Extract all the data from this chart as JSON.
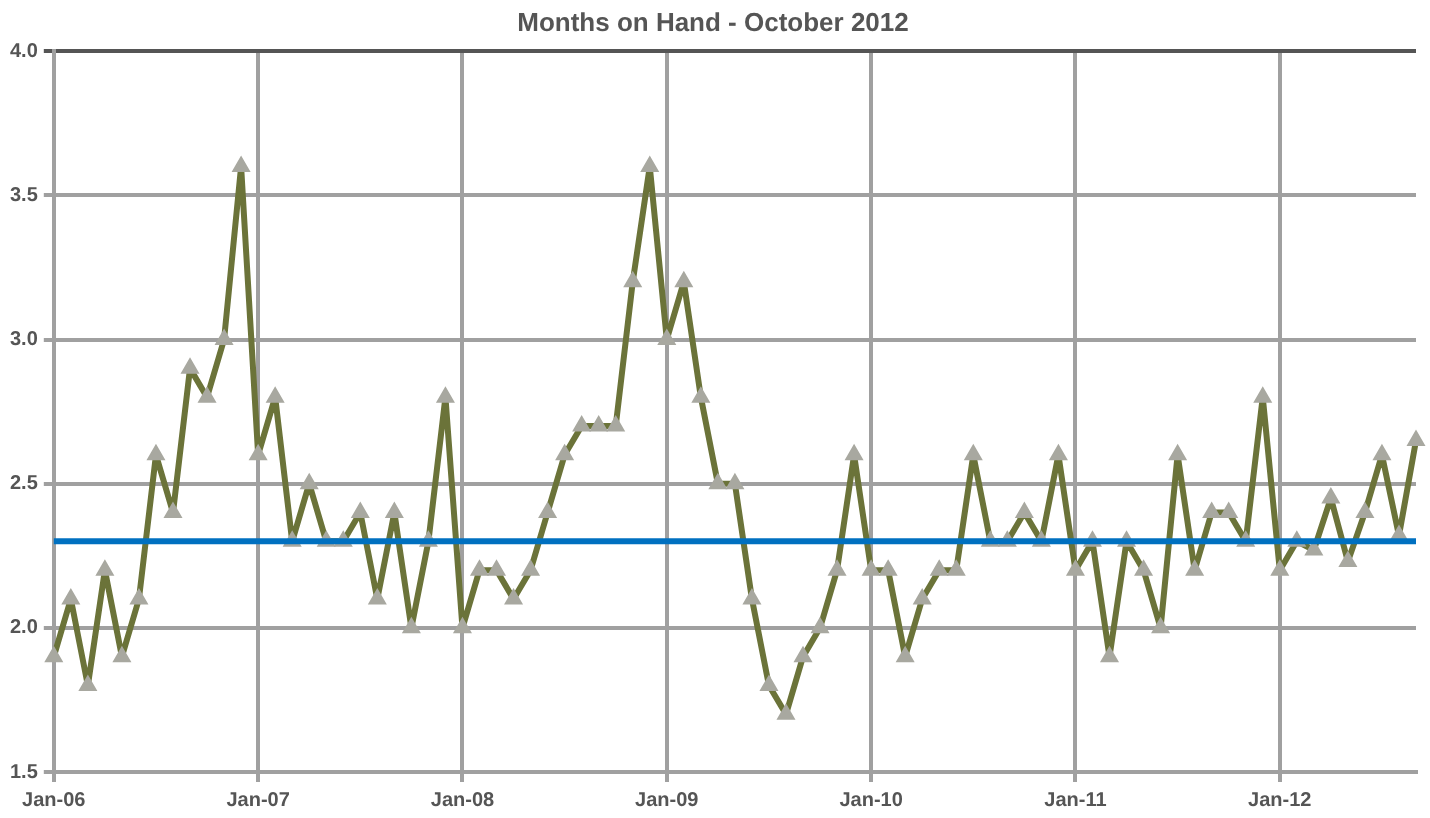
{
  "chart_data": {
    "type": "line",
    "title": "Months on Hand - October 2012",
    "categories": [
      "Jan-06",
      null,
      null,
      null,
      null,
      null,
      null,
      null,
      null,
      null,
      null,
      null,
      "Jan-07",
      null,
      null,
      null,
      null,
      null,
      null,
      null,
      null,
      null,
      null,
      null,
      "Jan-08",
      null,
      null,
      null,
      null,
      null,
      null,
      null,
      null,
      null,
      null,
      null,
      "Jan-09",
      null,
      null,
      null,
      null,
      null,
      null,
      null,
      null,
      null,
      null,
      null,
      "Jan-10",
      null,
      null,
      null,
      null,
      null,
      null,
      null,
      null,
      null,
      null,
      null,
      "Jan-11",
      null,
      null,
      null,
      null,
      null,
      null,
      null,
      null,
      null,
      null,
      null,
      "Jan-12",
      null,
      null,
      null,
      null,
      null,
      null,
      null,
      null
    ],
    "series": [
      {
        "color": "#6b7339",
        "values": [
          1.9,
          2.1,
          1.8,
          2.2,
          1.9,
          2.1,
          2.6,
          2.4,
          2.9,
          2.8,
          3.0,
          3.6,
          2.6,
          2.8,
          2.3,
          2.5,
          2.3,
          2.3,
          2.4,
          2.1,
          2.4,
          2.0,
          2.3,
          2.8,
          2.0,
          2.2,
          2.2,
          2.1,
          2.2,
          2.4,
          2.6,
          2.7,
          2.7,
          2.7,
          3.2,
          3.6,
          3.0,
          3.2,
          2.8,
          2.5,
          2.5,
          2.1,
          1.8,
          1.7,
          1.9,
          2.0,
          2.2,
          2.6,
          2.2,
          2.2,
          1.9,
          2.1,
          2.2,
          2.2,
          2.6,
          2.3,
          2.3,
          2.4,
          2.3,
          2.6,
          2.2,
          2.3,
          1.9,
          2.3,
          2.2,
          2.0,
          2.6,
          2.2,
          2.4,
          2.4,
          2.3,
          2.8,
          2.2,
          2.3,
          2.27,
          2.45,
          2.23,
          2.4,
          2.6,
          2.32,
          2.65
        ]
      }
    ],
    "ylim": [
      1.5,
      4.0
    ],
    "yticks": [
      1.5,
      {
        "value": 2.0,
        "label": "2.0"
      },
      2.5,
      {
        "value": 3.0,
        "label": "3.0"
      },
      3.5,
      {
        "value": 4.0,
        "label": "4.0"
      }
    ],
    "ref_lines": [
      {
        "axis": "y",
        "value": 2.3,
        "color": "#0070c0"
      }
    ],
    "grid": true,
    "marker": "triangle",
    "line_style": "solid",
    "legend": false
  }
}
